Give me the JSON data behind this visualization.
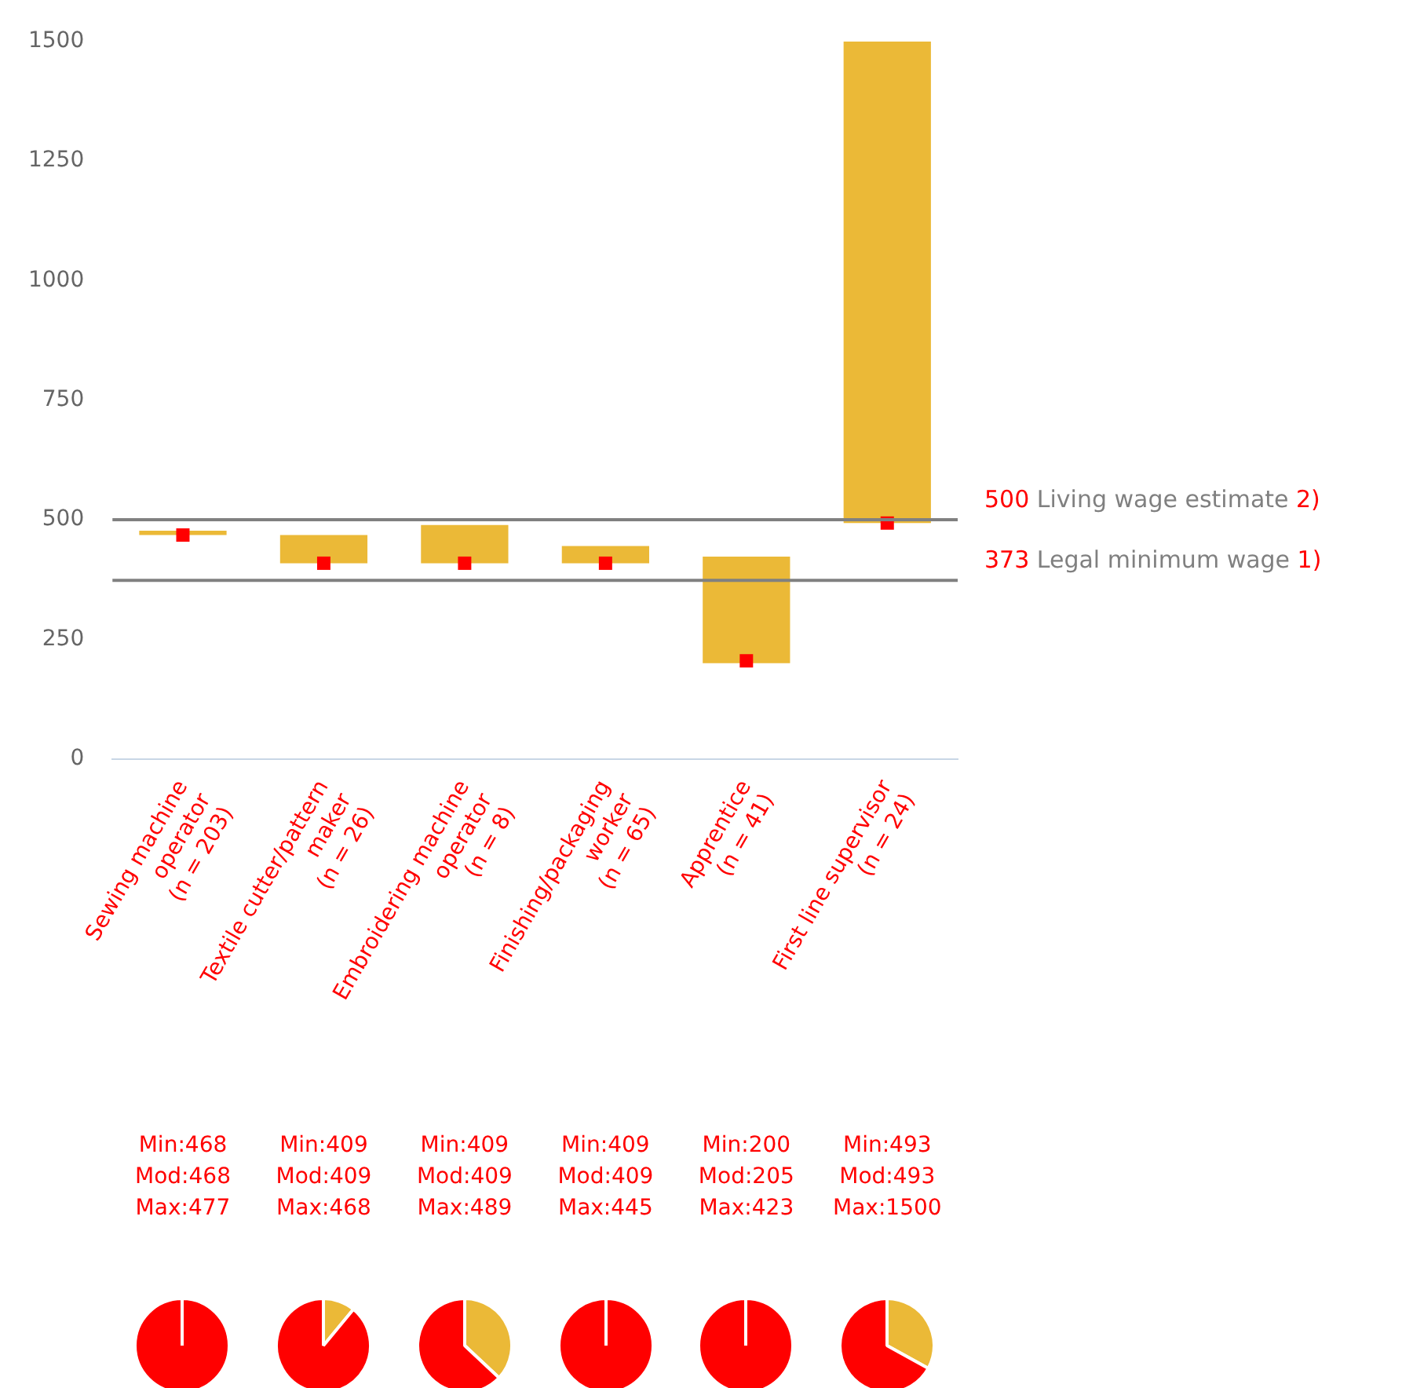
{
  "chart_data": [
    {
      "type": "bar",
      "categories": [
        "Sewing machine\noperator\n(n = 203)",
        "Textile cutter/pattern\nmaker\n(n = 26)",
        "Embroidering machine\noperator\n(n = 8)",
        "Finishing/packaging\nworker\n(n = 65)",
        "Apprentice\n(n = 41)",
        "First line supervisor\n(n = 24)"
      ],
      "series": [
        {
          "color": "#ebb937",
          "base": [
            468,
            409,
            409,
            409,
            200,
            493
          ],
          "values": [
            9,
            59,
            80,
            36,
            223,
            1007
          ],
          "value_labels": [
            "Min:468\nMod:468\nMax:477",
            "Min:409\nMod:409\nMax:468",
            "Min:409\nMod:409\nMax:489",
            "Min:409\nMod:409\nMax:445",
            "Min:200\nMod:205\nMax:423",
            "Min:493\nMod:493\nMax:1500"
          ]
        },
        {
          "type": "scatter",
          "color": "#ff0000",
          "x": [
            "Sewing machine\noperator\n(n = 203)",
            "Textile cutter/pattern\nmaker\n(n = 26)",
            "Embroidering machine\noperator\n(n = 8)",
            "Finishing/packaging\nworker\n(n = 65)",
            "Apprentice\n(n = 41)",
            "First line supervisor\n(n = 24)"
          ],
          "values": [
            468,
            409,
            409,
            409,
            205,
            493
          ],
          "marker": "square"
        }
      ],
      "ylim": [
        0,
        1500
      ],
      "yticks": [
        0,
        250,
        500,
        750,
        1000,
        1250,
        1500
      ],
      "grid": false,
      "legend": false,
      "ref_lines": [
        {
          "axis": "y",
          "value": 500,
          "label": "500 Living wage estimate 2)",
          "color": "#808080"
        },
        {
          "axis": "y",
          "value": 373,
          "label": "373 Legal minimum wage 1)",
          "color": "#808080"
        }
      ]
    },
    {
      "type": "pie",
      "categories": [
        null,
        null
      ],
      "values": [
        0,
        100
      ],
      "colors": [
        "#ebb937",
        "#ff0000"
      ]
    },
    {
      "type": "pie",
      "categories": [
        null,
        null
      ],
      "values": [
        11,
        89
      ],
      "colors": [
        "#ebb937",
        "#ff0000"
      ]
    },
    {
      "type": "pie",
      "categories": [
        null,
        null
      ],
      "values": [
        37,
        63
      ],
      "colors": [
        "#ebb937",
        "#ff0000"
      ]
    },
    {
      "type": "pie",
      "categories": [
        null,
        null
      ],
      "values": [
        0,
        100
      ],
      "colors": [
        "#ebb937",
        "#ff0000"
      ]
    },
    {
      "type": "pie",
      "categories": [
        null,
        null
      ],
      "values": [
        0,
        100
      ],
      "colors": [
        "#ebb937",
        "#ff0000"
      ]
    },
    {
      "type": "pie",
      "categories": [
        null,
        null
      ],
      "values": [
        33,
        67
      ],
      "colors": [
        "#ebb937",
        "#ff0000"
      ]
    }
  ]
}
